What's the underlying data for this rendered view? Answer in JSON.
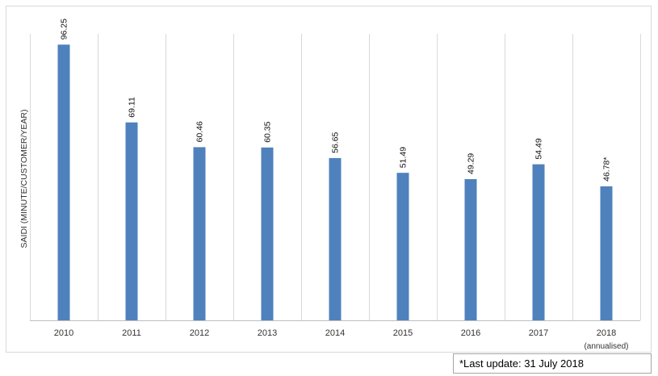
{
  "chart_data": {
    "type": "bar",
    "title": "",
    "xlabel": "",
    "ylabel": "SAIDI (MINUTE/CUSTOMER/YEAR)",
    "categories": [
      "2010",
      "2011",
      "2012",
      "2013",
      "2014",
      "2015",
      "2016",
      "2017",
      "2018"
    ],
    "category_sublabels": [
      "",
      "",
      "",
      "",
      "",
      "",
      "",
      "",
      "(annualised)"
    ],
    "values": [
      96.25,
      69.11,
      60.46,
      60.35,
      56.65,
      51.49,
      49.29,
      54.49,
      46.78
    ],
    "data_labels": [
      "96.25",
      "69.11",
      "60.46",
      "60.35",
      "56.65",
      "51.49",
      "49.29",
      "54.49",
      "46.78*"
    ],
    "ylim": [
      0,
      100
    ],
    "grid": "vertical",
    "legend": "none",
    "bar_color": "#4f81bd"
  },
  "footnote": "*Last update: 31 July 2018"
}
